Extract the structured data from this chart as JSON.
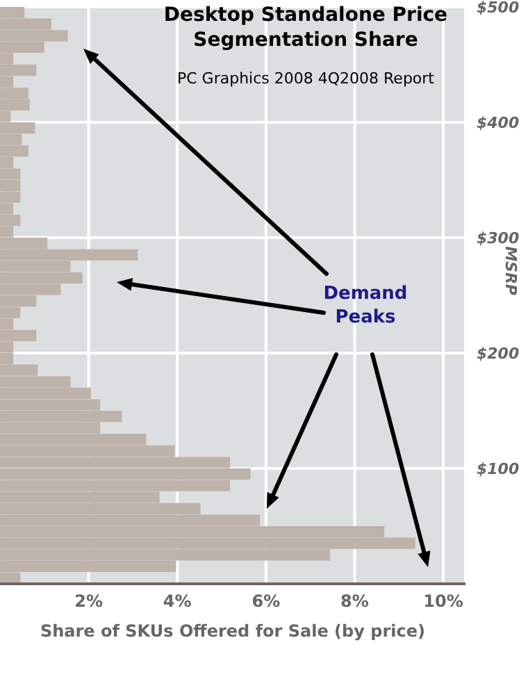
{
  "chart_data": {
    "type": "histogram",
    "orientation": "horizontal",
    "title": "Desktop Standalone Price Segmentation Share",
    "subtitle": "PC Graphics 2008  4Q2008 Report",
    "xlabel": "Share of SKUs Offered for Sale (by price)",
    "ylabel": "MSRP",
    "annotations": [
      "Demand Peaks"
    ],
    "bins": [
      0,
      10,
      20,
      30,
      40,
      50,
      60,
      70,
      80,
      90,
      100,
      110,
      120,
      130,
      140,
      150,
      160,
      170,
      180,
      190,
      200,
      210,
      220,
      230,
      240,
      250,
      260,
      270,
      280,
      290,
      300,
      310,
      320,
      330,
      340,
      350,
      360,
      370,
      380,
      390,
      400,
      410,
      420,
      430,
      440,
      450,
      460,
      470,
      480,
      490,
      500
    ],
    "values": [
      0.46,
      3.97,
      7.45,
      9.37,
      8.67,
      5.86,
      4.52,
      3.6,
      5.19,
      5.65,
      5.19,
      3.94,
      3.3,
      2.26,
      2.75,
      2.26,
      2.05,
      1.59,
      0.85,
      0.3,
      0.3,
      0.82,
      0.3,
      0.46,
      0.82,
      1.37,
      1.86,
      1.59,
      3.11,
      1.07,
      0.3,
      0.46,
      0.3,
      0.46,
      0.46,
      0.46,
      0.3,
      0.64,
      0.49,
      0.79,
      0.24,
      0.67,
      0.64,
      0.3,
      0.82,
      0.3,
      1.0,
      1.53,
      1.16,
      0.55
    ],
    "color": "#bdb3ab",
    "xlim": [
      0,
      10.5
    ],
    "xticks": [
      {
        "value": 2,
        "label": "2%"
      },
      {
        "value": 4,
        "label": "4%"
      },
      {
        "value": 6,
        "label": "6%"
      },
      {
        "value": 8,
        "label": "8%"
      },
      {
        "value": 10,
        "label": "10%"
      }
    ],
    "ylim": [
      0,
      500
    ],
    "yticks": [
      {
        "value": 100,
        "label": "$100"
      },
      {
        "value": 200,
        "label": "$200"
      },
      {
        "value": 300,
        "label": "$300"
      },
      {
        "value": 400,
        "label": "$400"
      },
      {
        "value": 500,
        "label": "$500"
      }
    ],
    "grid": true
  }
}
